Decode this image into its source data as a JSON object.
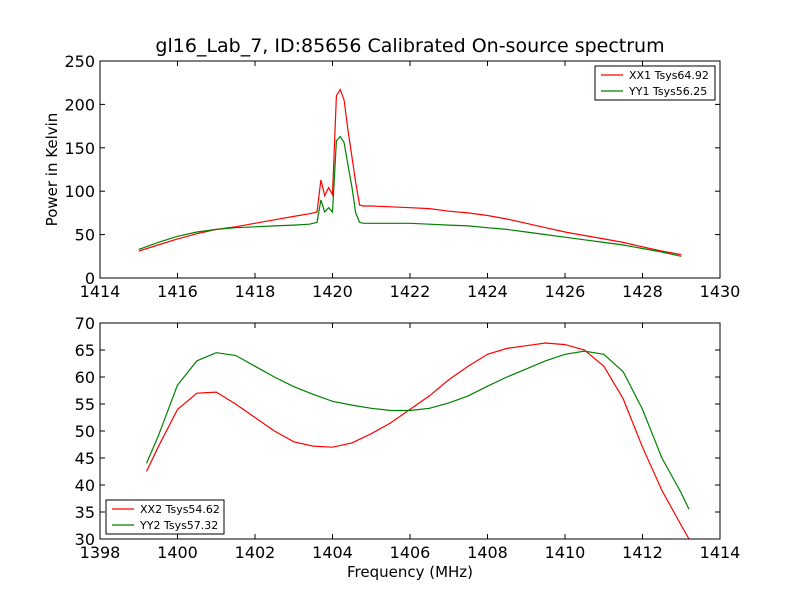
{
  "figure": {
    "title": "gl16_Lab_7, ID:85656 Calibrated On-source spectrum"
  },
  "chart_data": [
    {
      "type": "line",
      "title": "gl16_Lab_7, ID:85656 Calibrated On-source spectrum",
      "xlabel": "",
      "ylabel": "Power in Kelvin",
      "xlim": [
        1414,
        1430
      ],
      "ylim": [
        0,
        250
      ],
      "xticks": [
        1414,
        1416,
        1418,
        1420,
        1422,
        1424,
        1426,
        1428,
        1430
      ],
      "yticks": [
        0,
        50,
        100,
        150,
        200,
        250
      ],
      "grid": false,
      "legend_position": "top-right",
      "series": [
        {
          "name": "XX1 Tsys64.92",
          "color": "#ff0000",
          "x": [
            1415.0,
            1415.5,
            1416.0,
            1416.5,
            1417.0,
            1417.5,
            1418.0,
            1418.5,
            1419.0,
            1419.4,
            1419.6,
            1419.7,
            1419.8,
            1419.9,
            1420.0,
            1420.1,
            1420.2,
            1420.3,
            1420.4,
            1420.5,
            1420.6,
            1420.7,
            1420.8,
            1421.0,
            1421.5,
            1422.0,
            1422.5,
            1423.0,
            1423.5,
            1424.0,
            1424.5,
            1425.0,
            1425.5,
            1426.0,
            1426.5,
            1427.0,
            1427.5,
            1428.0,
            1428.5,
            1429.0
          ],
          "y": [
            31,
            38,
            45,
            51,
            56,
            59,
            63,
            67,
            71,
            74,
            76,
            113,
            95,
            104,
            96,
            210,
            217,
            205,
            170,
            140,
            110,
            84,
            83,
            83,
            82,
            81,
            80,
            77,
            75,
            72,
            68,
            63,
            58,
            53,
            49,
            45,
            41,
            36,
            31,
            27
          ]
        },
        {
          "name": "YY1 Tsys56.25",
          "color": "#008000",
          "x": [
            1415.0,
            1415.5,
            1416.0,
            1416.5,
            1417.0,
            1417.5,
            1418.0,
            1418.5,
            1419.0,
            1419.4,
            1419.6,
            1419.7,
            1419.8,
            1419.9,
            1420.0,
            1420.1,
            1420.2,
            1420.3,
            1420.4,
            1420.5,
            1420.6,
            1420.7,
            1420.8,
            1421.0,
            1421.5,
            1422.0,
            1422.5,
            1423.0,
            1423.5,
            1424.0,
            1424.5,
            1425.0,
            1425.5,
            1426.0,
            1426.5,
            1427.0,
            1427.5,
            1428.0,
            1428.5,
            1429.0
          ],
          "y": [
            33,
            41,
            48,
            53,
            56,
            58,
            59,
            60,
            61,
            62,
            64,
            90,
            76,
            81,
            76,
            158,
            163,
            156,
            130,
            105,
            75,
            64,
            63,
            63,
            63,
            63,
            62,
            61,
            60,
            58,
            56,
            53,
            50,
            47,
            44,
            41,
            38,
            34,
            30,
            25
          ]
        }
      ]
    },
    {
      "type": "line",
      "title": "",
      "xlabel": "Frequency (MHz)",
      "ylabel": "",
      "xlim": [
        1398,
        1414
      ],
      "ylim": [
        30,
        70
      ],
      "xticks": [
        1398,
        1400,
        1402,
        1404,
        1406,
        1408,
        1410,
        1412,
        1414
      ],
      "yticks": [
        30,
        35,
        40,
        45,
        50,
        55,
        60,
        65,
        70
      ],
      "grid": false,
      "legend_position": "bottom-left",
      "series": [
        {
          "name": "XX2 Tsys54.62",
          "color": "#ff0000",
          "x": [
            1399.2,
            1399.5,
            1400.0,
            1400.5,
            1401.0,
            1401.5,
            1402.0,
            1402.5,
            1403.0,
            1403.5,
            1404.0,
            1404.5,
            1405.0,
            1405.5,
            1406.0,
            1406.5,
            1407.0,
            1407.5,
            1408.0,
            1408.5,
            1409.0,
            1409.5,
            1410.0,
            1410.5,
            1411.0,
            1411.5,
            1412.0,
            1412.5,
            1413.0,
            1413.2
          ],
          "y": [
            42.5,
            47,
            54,
            57,
            57.2,
            55,
            52.5,
            50,
            48,
            47.2,
            47,
            47.8,
            49.5,
            51.5,
            54,
            56.5,
            59.5,
            62,
            64.2,
            65.3,
            65.8,
            66.3,
            66,
            65,
            62,
            56,
            47,
            39,
            32.5,
            30
          ]
        },
        {
          "name": "YY2 Tsys57.32",
          "color": "#008000",
          "x": [
            1399.2,
            1399.5,
            1400.0,
            1400.5,
            1401.0,
            1401.5,
            1402.0,
            1402.5,
            1403.0,
            1403.5,
            1404.0,
            1404.5,
            1405.0,
            1405.5,
            1406.0,
            1406.5,
            1407.0,
            1407.5,
            1408.0,
            1408.5,
            1409.0,
            1409.5,
            1410.0,
            1410.5,
            1411.0,
            1411.5,
            1412.0,
            1412.5,
            1413.0,
            1413.2
          ],
          "y": [
            44,
            49,
            58.5,
            63,
            64.5,
            64,
            62,
            60,
            58.2,
            56.8,
            55.5,
            54.8,
            54.2,
            53.8,
            53.8,
            54.2,
            55.2,
            56.5,
            58.3,
            60,
            61.5,
            63,
            64.2,
            64.8,
            64.2,
            61,
            54,
            45,
            38.5,
            35.5
          ]
        }
      ]
    }
  ]
}
